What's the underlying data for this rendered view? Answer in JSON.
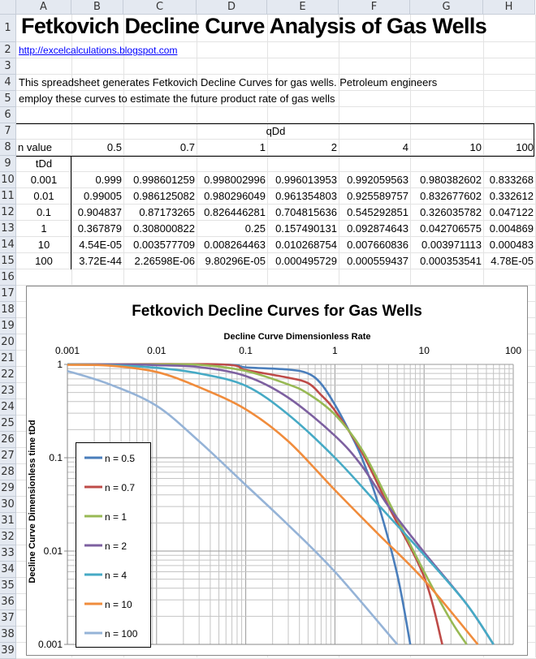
{
  "sheet": {
    "columns": [
      "A",
      "B",
      "C",
      "D",
      "E",
      "F",
      "G",
      "H"
    ],
    "rows": [
      "1",
      "2",
      "3",
      "4",
      "5",
      "6",
      "7",
      "8",
      "9",
      "10",
      "11",
      "12",
      "13",
      "14",
      "15",
      "16",
      "17",
      "18",
      "19",
      "20",
      "21",
      "22",
      "23",
      "24",
      "25",
      "26",
      "27",
      "28",
      "29",
      "30",
      "31",
      "32",
      "33",
      "34",
      "35",
      "36",
      "37",
      "38",
      "39"
    ]
  },
  "title": "Fetkovich Decline Curve Analysis of Gas Wells",
  "link": "http://excelcalculations.blogspot.com",
  "description": [
    "This spreadsheet generates Fetkovich Decline Curves for gas wells. Petroleum engineers",
    "employ these curves to estimate the future product rate of gas wells"
  ],
  "table": {
    "group_header": "qDd",
    "n_label": "n value",
    "n_values": [
      "0.5",
      "0.7",
      "1",
      "2",
      "4",
      "10",
      "100"
    ],
    "t_label": "tDd",
    "rows": [
      {
        "t": "0.001",
        "values": [
          "0.999",
          "0.998601259",
          "0.998002996",
          "0.996013953",
          "0.992059563",
          "0.980382602",
          "0.833268"
        ]
      },
      {
        "t": "0.01",
        "values": [
          "0.99005",
          "0.986125082",
          "0.980296049",
          "0.961354803",
          "0.925589757",
          "0.832677602",
          "0.332612"
        ]
      },
      {
        "t": "0.1",
        "values": [
          "0.904837",
          "0.87173265",
          "0.826446281",
          "0.704815636",
          "0.545292851",
          "0.326035782",
          "0.047122"
        ]
      },
      {
        "t": "1",
        "values": [
          "0.367879",
          "0.308000822",
          "0.25",
          "0.157490131",
          "0.092874643",
          "0.042706575",
          "0.004869"
        ]
      },
      {
        "t": "10",
        "values": [
          "4.54E-05",
          "0.003577709",
          "0.008264463",
          "0.010268754",
          "0.007660836",
          "0.003971113",
          "0.000483"
        ]
      },
      {
        "t": "100",
        "values": [
          "3.72E-44",
          "2.26598E-06",
          "9.80296E-05",
          "0.000495729",
          "0.000559437",
          "0.000353541",
          "4.78E-05"
        ]
      }
    ]
  },
  "chart_data": {
    "type": "line",
    "title": "Fetkovich Decline Curves for Gas Wells",
    "xlabel": "Decline Curve Dimensionless Rate",
    "ylabel": "Decline Curve Dimensionless time tDd",
    "x_scale": "log",
    "y_scale": "log",
    "xlim": [
      0.001,
      100
    ],
    "ylim": [
      0.001,
      1
    ],
    "x_axis_position": "top",
    "x_ticks": [
      "0.001",
      "0.01",
      "0.1",
      "1",
      "10",
      "100"
    ],
    "y_ticks": [
      "1",
      "0.1",
      "0.01",
      "0.001"
    ],
    "grid": true,
    "legend_placement": "left",
    "series": [
      {
        "name": "n = 0.5",
        "color": "#4a7ebb",
        "points": [
          [
            0.001,
            1
          ],
          [
            0.05,
            1
          ],
          [
            0.1,
            0.93
          ],
          [
            0.3,
            0.88
          ],
          [
            0.5,
            0.8
          ],
          [
            0.7,
            0.62
          ],
          [
            1,
            0.37
          ],
          [
            1.5,
            0.18
          ],
          [
            2,
            0.1
          ],
          [
            3,
            0.034
          ],
          [
            5,
            0.0056
          ],
          [
            7,
            0.001
          ]
        ]
      },
      {
        "name": "n = 0.7",
        "color": "#be4b48",
        "points": [
          [
            0.001,
            1
          ],
          [
            0.05,
            1
          ],
          [
            0.1,
            0.87
          ],
          [
            0.3,
            0.72
          ],
          [
            0.5,
            0.63
          ],
          [
            0.7,
            0.47
          ],
          [
            1,
            0.32
          ],
          [
            2,
            0.115
          ],
          [
            4,
            0.03
          ],
          [
            10,
            0.0053
          ],
          [
            16,
            0.001
          ]
        ]
      },
      {
        "name": "n = 1",
        "color": "#98b954",
        "points": [
          [
            0.001,
            1
          ],
          [
            0.01,
            1
          ],
          [
            0.03,
            0.99
          ],
          [
            0.1,
            0.85
          ],
          [
            0.3,
            0.61
          ],
          [
            0.5,
            0.485
          ],
          [
            1,
            0.29
          ],
          [
            2,
            0.123
          ],
          [
            4,
            0.034
          ],
          [
            10,
            0.006
          ],
          [
            20,
            0.0018
          ],
          [
            30,
            0.001
          ]
        ]
      },
      {
        "name": "n = 2",
        "color": "#7d60a0",
        "points": [
          [
            0.001,
            1
          ],
          [
            0.005,
            1
          ],
          [
            0.01,
            0.98
          ],
          [
            0.03,
            0.935
          ],
          [
            0.1,
            0.75
          ],
          [
            0.3,
            0.44
          ],
          [
            1,
            0.172
          ],
          [
            2,
            0.082
          ],
          [
            4,
            0.03
          ],
          [
            10,
            0.0097
          ],
          [
            30,
            0.0027
          ],
          [
            60,
            0.001
          ]
        ]
      },
      {
        "name": "n = 4",
        "color": "#46aac5",
        "points": [
          [
            0.001,
            1
          ],
          [
            0.003,
            0.98
          ],
          [
            0.01,
            0.92
          ],
          [
            0.03,
            0.8
          ],
          [
            0.1,
            0.59
          ],
          [
            0.3,
            0.29
          ],
          [
            1,
            0.1
          ],
          [
            3,
            0.032
          ],
          [
            10,
            0.0091
          ],
          [
            30,
            0.0027
          ],
          [
            60,
            0.001
          ]
        ]
      },
      {
        "name": "n = 10",
        "color": "#f08c3c",
        "points": [
          [
            0.001,
            0.99
          ],
          [
            0.003,
            0.97
          ],
          [
            0.01,
            0.83
          ],
          [
            0.03,
            0.57
          ],
          [
            0.1,
            0.33
          ],
          [
            0.3,
            0.15
          ],
          [
            1,
            0.045
          ],
          [
            3,
            0.0155
          ],
          [
            10,
            0.0049
          ],
          [
            40,
            0.001
          ]
        ]
      },
      {
        "name": "n = 100",
        "color": "#95b3d7",
        "points": [
          [
            0.001,
            0.85
          ],
          [
            0.003,
            0.61
          ],
          [
            0.01,
            0.36
          ],
          [
            0.03,
            0.15
          ],
          [
            0.1,
            0.051
          ],
          [
            0.3,
            0.019
          ],
          [
            1,
            0.006
          ],
          [
            5,
            0.001
          ]
        ]
      }
    ]
  }
}
